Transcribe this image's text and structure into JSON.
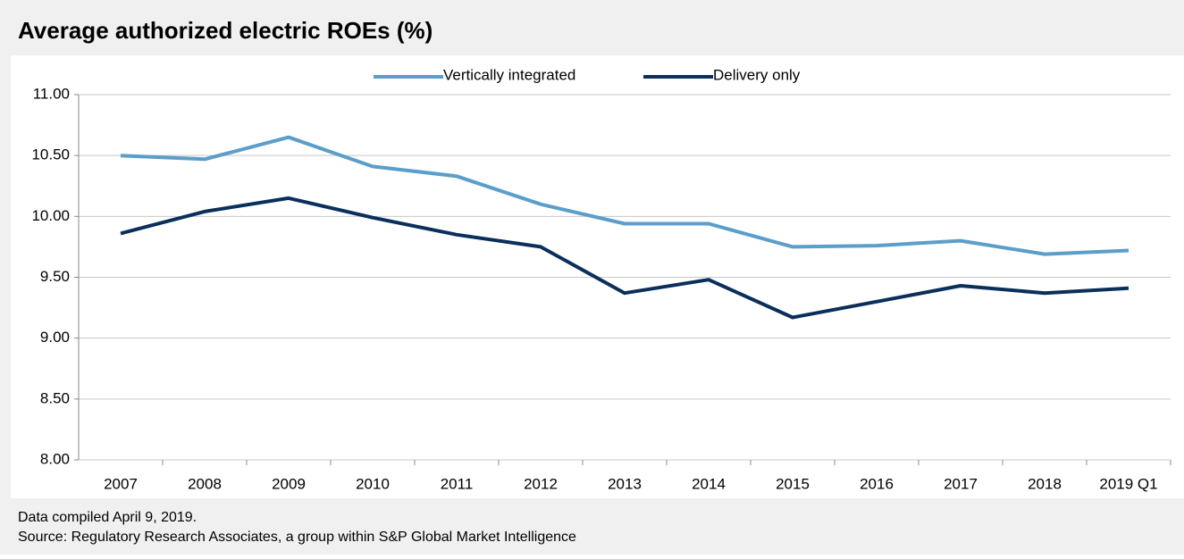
{
  "chart_data": {
    "type": "line",
    "title": "Average authorized electric ROEs (%)",
    "categories": [
      "2007",
      "2008",
      "2009",
      "2010",
      "2011",
      "2012",
      "2013",
      "2014",
      "2015",
      "2016",
      "2017",
      "2018",
      "2019 Q1"
    ],
    "series": [
      {
        "name": "Vertically integrated",
        "color": "#5b9ec9",
        "values": [
          10.5,
          10.47,
          10.65,
          10.41,
          10.33,
          10.1,
          9.94,
          9.94,
          9.75,
          9.76,
          9.8,
          9.69,
          9.72
        ]
      },
      {
        "name": "Delivery only",
        "color": "#0b2f5b",
        "values": [
          9.86,
          10.04,
          10.15,
          9.99,
          9.85,
          9.75,
          9.37,
          9.48,
          9.17,
          9.3,
          9.43,
          9.37,
          9.41
        ]
      }
    ],
    "ylim": [
      8,
      11
    ],
    "yticks": [
      {
        "value": 8,
        "label": "8.00"
      },
      {
        "value": 8.5,
        "label": "8.50"
      },
      {
        "value": 9,
        "label": "9.00"
      },
      {
        "value": 9.5,
        "label": "9.50"
      },
      {
        "value": 10,
        "label": "10.00"
      },
      {
        "value": 10.5,
        "label": "10.50"
      },
      {
        "value": 11,
        "label": "11.00"
      }
    ],
    "grid": true,
    "legend": "top",
    "notes": [
      "Data compiled April 9, 2019.",
      "Source: Regulatory Research Associates, a group within S&P Global Market Intelligence"
    ]
  }
}
